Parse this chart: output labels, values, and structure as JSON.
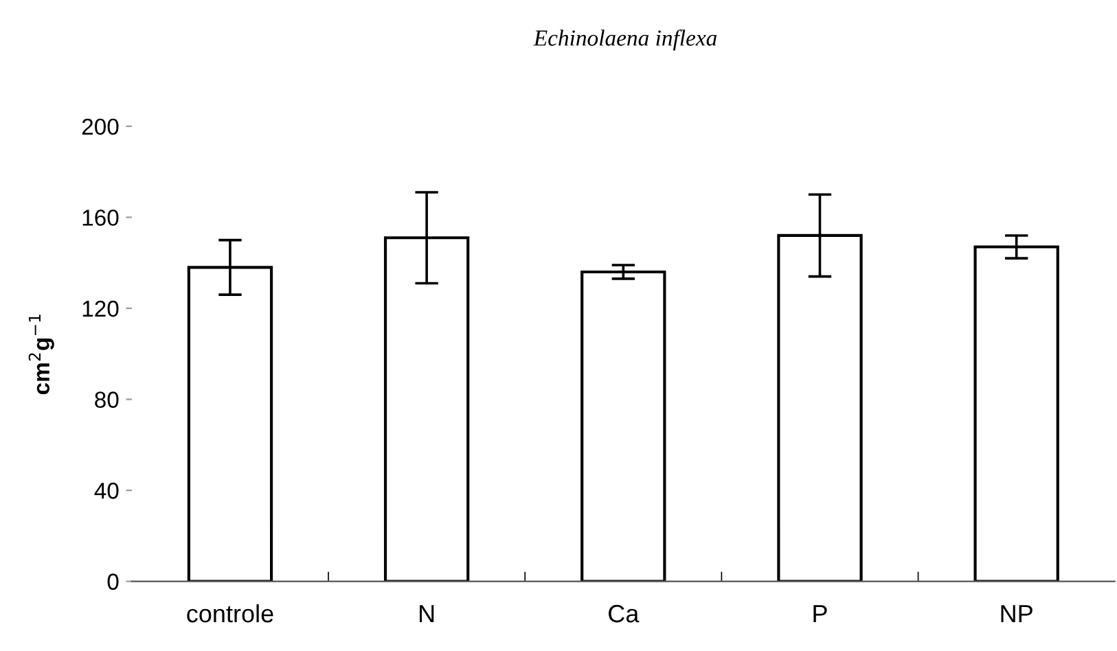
{
  "chart_data": {
    "type": "bar",
    "title": "Echinolaena inflexa",
    "ylabel": "cm$^{2}$g$^{−1}$",
    "categories": [
      "controle",
      "N",
      "Ca",
      "P",
      "NP"
    ],
    "values": [
      138,
      151,
      136,
      152,
      147
    ],
    "errors": [
      12,
      20,
      3,
      18,
      5
    ],
    "color": "#ffffff",
    "ylim": [
      0,
      200
    ],
    "yticks": [
      0,
      40,
      80,
      120,
      160,
      200
    ],
    "grid": false,
    "legend": false
  }
}
